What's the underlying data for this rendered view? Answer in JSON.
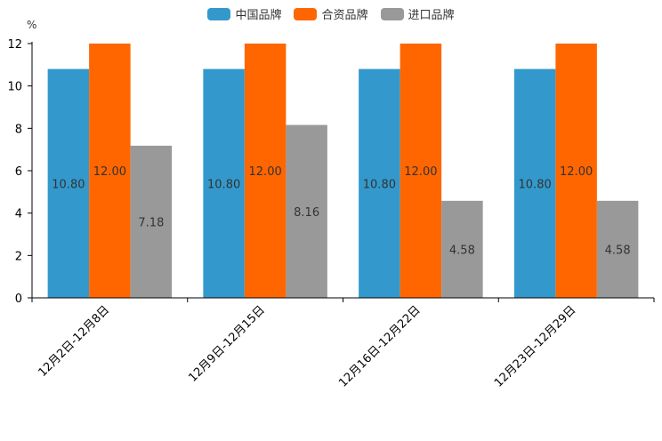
{
  "chart_data": {
    "type": "bar",
    "title": "",
    "unit_label": "%",
    "xlabel": "",
    "ylabel": "%",
    "ylim": [
      0,
      12
    ],
    "yticks": [
      0,
      2,
      4,
      6,
      8,
      10,
      12
    ],
    "categories": [
      "12月2日-12月8日",
      "12月9日-12月15日",
      "12月16日-12月22日",
      "12月23日-12月29日"
    ],
    "series": [
      {
        "name": "中国品牌",
        "color": "#3399cc",
        "values": [
          10.8,
          10.8,
          10.8,
          10.8
        ]
      },
      {
        "name": "合资品牌",
        "color": "#ff6600",
        "values": [
          12.0,
          12.0,
          12.0,
          12.0
        ]
      },
      {
        "name": "进口品牌",
        "color": "#999999",
        "values": [
          7.18,
          8.16,
          4.58,
          4.58
        ]
      }
    ],
    "legend_position": "top-center",
    "grid": false
  }
}
